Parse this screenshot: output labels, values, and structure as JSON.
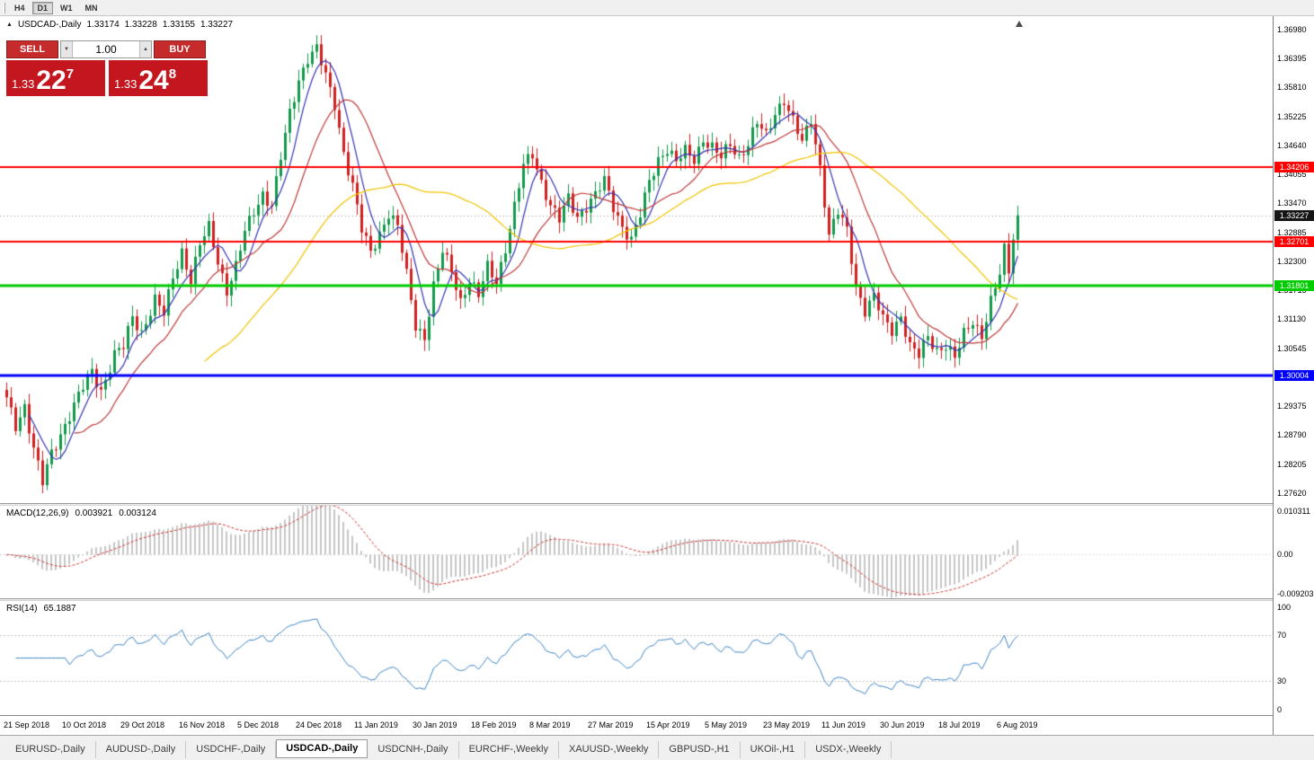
{
  "toolbar": {
    "timeframes": [
      {
        "label": "H4",
        "active": false
      },
      {
        "label": "D1",
        "active": true
      },
      {
        "label": "W1",
        "active": false
      },
      {
        "label": "MN",
        "active": false
      }
    ]
  },
  "chart": {
    "symbol": "USDCAD-,Daily",
    "ohlc": {
      "open": "1.33174",
      "high": "1.33228",
      "low": "1.33155",
      "close": "1.33227"
    }
  },
  "trade_panel": {
    "sell_label": "SELL",
    "buy_label": "BUY",
    "volume": "1.00",
    "sell_price": {
      "prefix": "1.33",
      "big": "22",
      "sup": "7"
    },
    "buy_price": {
      "prefix": "1.33",
      "big": "24",
      "sup": "8"
    }
  },
  "price_axis": {
    "max_value": 1.3725,
    "min_value": 1.2742,
    "labels": [
      "1.36980",
      "1.36395",
      "1.35810",
      "1.35225",
      "1.34640",
      "1.34055",
      "1.33470",
      "1.32885",
      "1.32300",
      "1.31715",
      "1.31130",
      "1.30545",
      "1.29960",
      "1.29375",
      "1.28790",
      "1.28205",
      "1.27620"
    ]
  },
  "levels": [
    {
      "label": "1.34206",
      "price": 1.34206,
      "color": "#ff0000",
      "width": 2
    },
    {
      "label": "1.32701",
      "price": 1.32701,
      "color": "#ff0000",
      "width": 2
    },
    {
      "label": "1.31801",
      "price": 1.31801,
      "color": "#00cc00",
      "width": 3
    },
    {
      "label": "1.30004",
      "price": 1.30004,
      "color": "#0000ff",
      "width": 3
    }
  ],
  "current_price": {
    "label": "1.33227",
    "price": 1.33227
  },
  "chart_data": {
    "type": "candlestick",
    "symbol": "USDCAD",
    "timeframe": "Daily",
    "bars_total": 226,
    "up_color": "#149a4c",
    "down_color": "#d22121",
    "moving_averages": [
      {
        "period": 6,
        "color": "#3434b4"
      },
      {
        "period": 16,
        "color": "#c03a3a"
      },
      {
        "period": 45,
        "color": "#f2c400"
      }
    ],
    "close_path_anchors": [
      [
        0,
        1.295
      ],
      [
        2,
        1.2898
      ],
      [
        4,
        1.294
      ],
      [
        6,
        1.2852
      ],
      [
        8,
        1.2782
      ],
      [
        10,
        1.2842
      ],
      [
        13,
        1.2902
      ],
      [
        16,
        1.2958
      ],
      [
        19,
        1.3008
      ],
      [
        21,
        1.297
      ],
      [
        24,
        1.3042
      ],
      [
        26,
        1.3056
      ],
      [
        28,
        1.3118
      ],
      [
        30,
        1.3088
      ],
      [
        33,
        1.3152
      ],
      [
        35,
        1.3122
      ],
      [
        37,
        1.3198
      ],
      [
        39,
        1.3252
      ],
      [
        41,
        1.3192
      ],
      [
        43,
        1.3262
      ],
      [
        45,
        1.3298
      ],
      [
        47,
        1.3232
      ],
      [
        49,
        1.3172
      ],
      [
        51,
        1.3218
      ],
      [
        53,
        1.3288
      ],
      [
        55,
        1.3332
      ],
      [
        57,
        1.3368
      ],
      [
        59,
        1.3342
      ],
      [
        61,
        1.3438
      ],
      [
        63,
        1.3528
      ],
      [
        65,
        1.3598
      ],
      [
        67,
        1.3642
      ],
      [
        69,
        1.3658
      ],
      [
        71,
        1.3602
      ],
      [
        73,
        1.3548
      ],
      [
        75,
        1.3452
      ],
      [
        77,
        1.3382
      ],
      [
        79,
        1.3292
      ],
      [
        81,
        1.3248
      ],
      [
        83,
        1.3288
      ],
      [
        85,
        1.3328
      ],
      [
        87,
        1.3298
      ],
      [
        89,
        1.3202
      ],
      [
        91,
        1.3102
      ],
      [
        93,
        1.3078
      ],
      [
        95,
        1.3178
      ],
      [
        97,
        1.3248
      ],
      [
        99,
        1.3212
      ],
      [
        101,
        1.3152
      ],
      [
        103,
        1.3192
      ],
      [
        105,
        1.3158
      ],
      [
        107,
        1.3218
      ],
      [
        109,
        1.3192
      ],
      [
        111,
        1.3258
      ],
      [
        113,
        1.3338
      ],
      [
        115,
        1.3422
      ],
      [
        117,
        1.3448
      ],
      [
        119,
        1.3392
      ],
      [
        121,
        1.3342
      ],
      [
        123,
        1.3312
      ],
      [
        125,
        1.3358
      ],
      [
        127,
        1.3322
      ],
      [
        129,
        1.3342
      ],
      [
        131,
        1.3362
      ],
      [
        133,
        1.3392
      ],
      [
        135,
        1.3342
      ],
      [
        137,
        1.3302
      ],
      [
        139,
        1.3272
      ],
      [
        141,
        1.3322
      ],
      [
        143,
        1.3392
      ],
      [
        145,
        1.3438
      ],
      [
        147,
        1.3458
      ],
      [
        149,
        1.3428
      ],
      [
        151,
        1.3452
      ],
      [
        153,
        1.3438
      ],
      [
        155,
        1.3478
      ],
      [
        157,
        1.3458
      ],
      [
        159,
        1.3438
      ],
      [
        161,
        1.3468
      ],
      [
        163,
        1.3442
      ],
      [
        165,
        1.3468
      ],
      [
        167,
        1.3508
      ],
      [
        169,
        1.3482
      ],
      [
        171,
        1.3532
      ],
      [
        173,
        1.3558
      ],
      [
        175,
        1.3512
      ],
      [
        177,
        1.3468
      ],
      [
        179,
        1.3518
      ],
      [
        181,
        1.3422
      ],
      [
        183,
        1.3282
      ],
      [
        185,
        1.3328
      ],
      [
        187,
        1.3292
      ],
      [
        189,
        1.3182
      ],
      [
        191,
        1.3132
      ],
      [
        193,
        1.3158
      ],
      [
        195,
        1.3112
      ],
      [
        197,
        1.3092
      ],
      [
        199,
        1.3122
      ],
      [
        201,
        1.3058
      ],
      [
        203,
        1.3038
      ],
      [
        205,
        1.3078
      ],
      [
        207,
        1.3052
      ],
      [
        209,
        1.3062
      ],
      [
        211,
        1.3032
      ],
      [
        213,
        1.3082
      ],
      [
        215,
        1.3112
      ],
      [
        217,
        1.3082
      ],
      [
        219,
        1.3148
      ],
      [
        221,
        1.3202
      ],
      [
        222,
        1.3252
      ],
      [
        223,
        1.3212
      ],
      [
        224,
        1.3282
      ],
      [
        225,
        1.3323
      ]
    ]
  },
  "macd": {
    "name": "MACD(12,26,9)",
    "value": "0.003921",
    "signal": "0.003124",
    "fast": 12,
    "slow": 26,
    "signal_period": 9,
    "axis": {
      "max_label": "0.010311",
      "max_value": 0.010311,
      "mid_label": "0.00",
      "min_label": "-0.009203",
      "min_value": -0.009203
    },
    "hist_color": "#c6c6c6",
    "signal_color": "#d03030"
  },
  "rsi": {
    "name": "RSI(14)",
    "value": "65.1887",
    "period": 14,
    "line_color": "#3e86c8",
    "axis_labels": [
      "100",
      "70",
      "30",
      "0"
    ],
    "level_lines": [
      70,
      30
    ]
  },
  "time_axis": {
    "bars_per_label": 13,
    "dates": [
      "21 Sep 2018",
      "10 Oct 2018",
      "29 Oct 2018",
      "16 Nov 2018",
      "5 Dec 2018",
      "24 Dec 2018",
      "11 Jan 2019",
      "30 Jan 2019",
      "18 Feb 2019",
      "8 Mar 2019",
      "27 Mar 2019",
      "15 Apr 2019",
      "5 May 2019",
      "23 May 2019",
      "11 Jun 2019",
      "30 Jun 2019",
      "18 Jul 2019",
      "6 Aug 2019"
    ]
  },
  "tabs": [
    {
      "label": "EURUSD-,Daily",
      "active": false
    },
    {
      "label": "AUDUSD-,Daily",
      "active": false
    },
    {
      "label": "USDCHF-,Daily",
      "active": false
    },
    {
      "label": "USDCAD-,Daily",
      "active": true
    },
    {
      "label": "USDCNH-,Daily",
      "active": false
    },
    {
      "label": "EURCHF-,Weekly",
      "active": false
    },
    {
      "label": "XAUUSD-,Weekly",
      "active": false
    },
    {
      "label": "GBPUSD-,H1",
      "active": false
    },
    {
      "label": "UKOil-,H1",
      "active": false
    },
    {
      "label": "USDX-,Weekly",
      "active": false
    }
  ]
}
